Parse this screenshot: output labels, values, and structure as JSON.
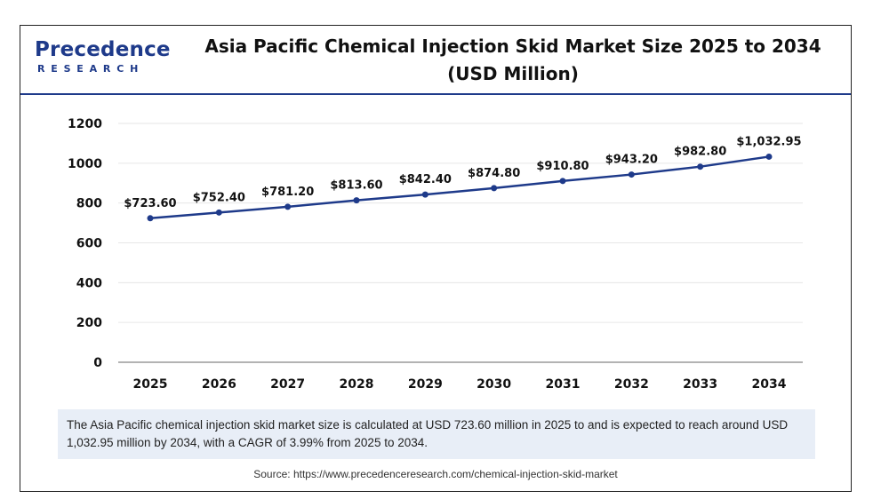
{
  "header": {
    "logo_main": "Precedence",
    "logo_sub": "RESEARCH",
    "title_line1": "Asia Pacific Chemical Injection Skid Market Size 2025 to 2034",
    "title_line2": "(USD Million)"
  },
  "note": "The Asia Pacific chemical injection skid market size is calculated at USD 723.60 million in 2025 to and is expected to reach around USD 1,032.95 million by 2034, with a CAGR of 3.99% from 2025 to 2034.",
  "source": "Source: https://www.precedenceresearch.com/chemical-injection-skid-market",
  "colors": {
    "line": "#1e3a8a",
    "brand": "#1e3a8a",
    "note_bg": "#e8eef7"
  },
  "chart_data": {
    "type": "line",
    "title": "Asia Pacific Chemical Injection Skid Market Size 2025 to 2034 (USD Million)",
    "categories": [
      "2025",
      "2026",
      "2027",
      "2028",
      "2029",
      "2030",
      "2031",
      "2032",
      "2033",
      "2034"
    ],
    "series": [
      {
        "values": [
          723.6,
          752.4,
          781.2,
          813.6,
          842.4,
          874.8,
          910.8,
          943.2,
          982.8,
          1032.95
        ],
        "labels": [
          "$723.60",
          "$752.40",
          "$781.20",
          "$813.60",
          "$842.40",
          "$874.80",
          "$910.80",
          "$943.20",
          "$982.80",
          "$1,032.95"
        ]
      }
    ],
    "yticks": [
      "0",
      "200",
      "400",
      "600",
      "800",
      "1000",
      "1200"
    ],
    "ylim": [
      0,
      1200
    ],
    "grid": true,
    "xlabel": "",
    "ylabel": ""
  }
}
